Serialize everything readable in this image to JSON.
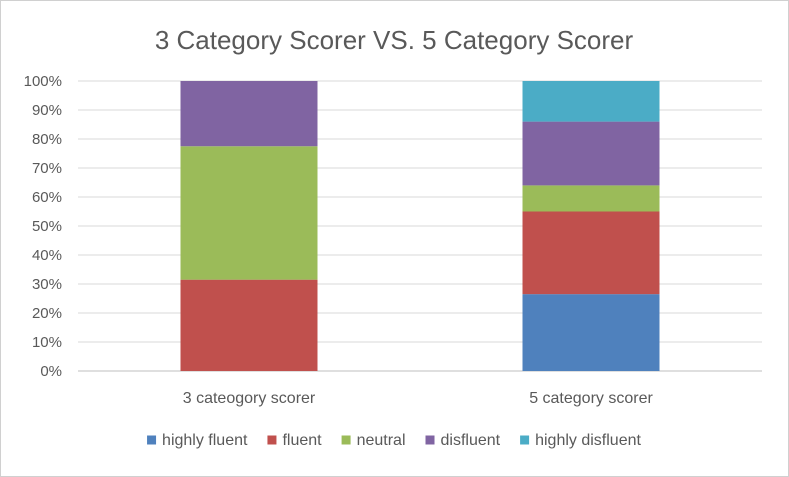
{
  "chart_data": {
    "type": "bar",
    "stacked": true,
    "percent": true,
    "title": "3 Category Scorer VS. 5 Category Scorer",
    "xlabel": "",
    "ylabel": "",
    "ylim": [
      0,
      100
    ],
    "yticks": [
      "0%",
      "10%",
      "20%",
      "30%",
      "40%",
      "50%",
      "60%",
      "70%",
      "80%",
      "90%",
      "100%"
    ],
    "categories": [
      "3 cateogory scorer",
      "5 category scorer"
    ],
    "series": [
      {
        "name": "highly fluent",
        "color": "#4F81BD",
        "values": [
          0,
          26.5
        ]
      },
      {
        "name": "fluent",
        "color": "#C0504D",
        "values": [
          31.5,
          28.5
        ]
      },
      {
        "name": "neutral",
        "color": "#9BBB59",
        "values": [
          46,
          9
        ]
      },
      {
        "name": "disfluent",
        "color": "#8064A2",
        "values": [
          22.5,
          22
        ]
      },
      {
        "name": "highly disfluent",
        "color": "#4BACC6",
        "values": [
          0,
          14
        ]
      }
    ],
    "grid": true,
    "legend": "bottom"
  }
}
